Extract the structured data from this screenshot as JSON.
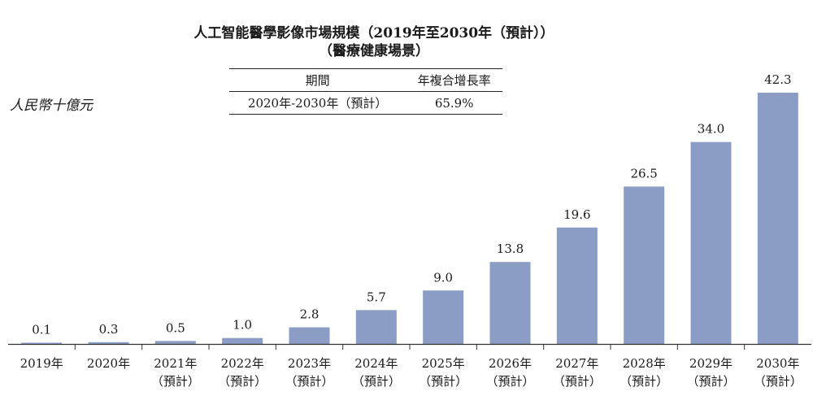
{
  "chart_data": {
    "type": "bar",
    "title": "人工智能醫學影像市場規模（2019年至2030年（預計））",
    "subtitle": "（醫療健康場景）",
    "ylabel": "人民幣十億元",
    "categories": [
      [
        "2019年"
      ],
      [
        "2020年"
      ],
      [
        "2021年",
        "（預計）"
      ],
      [
        "2022年",
        "（預計）"
      ],
      [
        "2023年",
        "（預計）"
      ],
      [
        "2024年",
        "（預計）"
      ],
      [
        "2025年",
        "（預計）"
      ],
      [
        "2026年",
        "（預計）"
      ],
      [
        "2027年",
        "（預計）"
      ],
      [
        "2028年",
        "（預計）"
      ],
      [
        "2029年",
        "（預計）"
      ],
      [
        "2030年",
        "（預計）"
      ]
    ],
    "values": [
      0.1,
      0.3,
      0.5,
      1.0,
      2.8,
      5.7,
      9.0,
      13.8,
      19.6,
      26.5,
      34.0,
      42.3
    ],
    "value_labels": [
      "0.1",
      "0.3",
      "0.5",
      "1.0",
      "2.8",
      "5.7",
      "9.0",
      "13.8",
      "19.6",
      "26.5",
      "34.0",
      "42.3"
    ],
    "ylim": [
      0,
      42.3
    ],
    "bar_color": "#8b9dc5",
    "grid": false
  },
  "cagr_table": {
    "headers": [
      "期間",
      "年複合增長率"
    ],
    "rows": [
      [
        "2020年-2030年（預計）",
        "65.9%"
      ]
    ]
  }
}
